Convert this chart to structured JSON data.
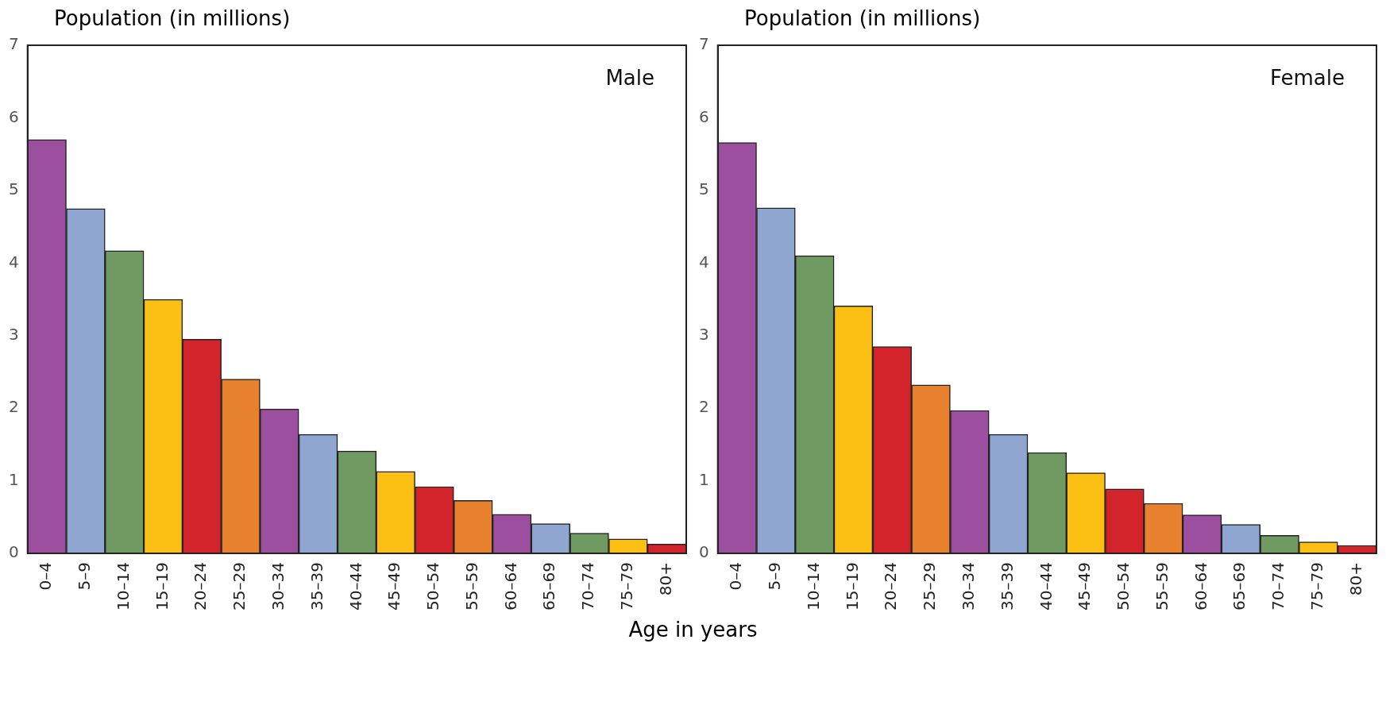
{
  "chart_data": [
    {
      "type": "bar",
      "ylabel": "Population (in millions)",
      "xlabel": "Age in years",
      "annotations": [
        "Male"
      ],
      "categories": [
        "0–4",
        "5–9",
        "10–14",
        "15–19",
        "20–24",
        "25–29",
        "30–34",
        "35–39",
        "40–44",
        "45–49",
        "50–54",
        "55–59",
        "60–64",
        "65–69",
        "70–74",
        "75–79",
        "80+"
      ],
      "values": [
        5.7,
        4.75,
        4.17,
        3.5,
        2.95,
        2.4,
        1.99,
        1.64,
        1.41,
        1.13,
        0.92,
        0.73,
        0.54,
        0.41,
        0.28,
        0.2,
        0.13
      ],
      "colors": [
        "#9b4f9e",
        "#8fa7d0",
        "#6f9b62",
        "#fcc015",
        "#d3242b",
        "#e8812e",
        "#9b4f9e",
        "#8fa7d0",
        "#6f9b62",
        "#fcc015",
        "#d3242b",
        "#e8812e",
        "#9b4f9e",
        "#8fa7d0",
        "#6f9b62",
        "#fcc015",
        "#d3242b"
      ],
      "ylim": [
        0,
        7
      ],
      "yticks": [
        0,
        1,
        2,
        3,
        4,
        5,
        6,
        7
      ]
    },
    {
      "type": "bar",
      "ylabel": "Population (in millions)",
      "annotations": [
        "Female"
      ],
      "categories": [
        "0–4",
        "5–9",
        "10–14",
        "15–19",
        "20–24",
        "25–29",
        "30–34",
        "35–39",
        "40–44",
        "45–49",
        "50–54",
        "55–59",
        "60–64",
        "65–69",
        "70–74",
        "75–79",
        "80+"
      ],
      "values": [
        5.66,
        4.76,
        4.1,
        3.41,
        2.85,
        2.32,
        1.97,
        1.64,
        1.39,
        1.11,
        0.89,
        0.69,
        0.53,
        0.4,
        0.25,
        0.16,
        0.11
      ],
      "colors": [
        "#9b4f9e",
        "#8fa7d0",
        "#6f9b62",
        "#fcc015",
        "#d3242b",
        "#e8812e",
        "#9b4f9e",
        "#8fa7d0",
        "#6f9b62",
        "#fcc015",
        "#d3242b",
        "#e8812e",
        "#9b4f9e",
        "#8fa7d0",
        "#6f9b62",
        "#fcc015",
        "#d3242b"
      ],
      "ylim": [
        0,
        7
      ],
      "yticks": [
        0,
        1,
        2,
        3,
        4,
        5,
        6,
        7
      ]
    }
  ]
}
